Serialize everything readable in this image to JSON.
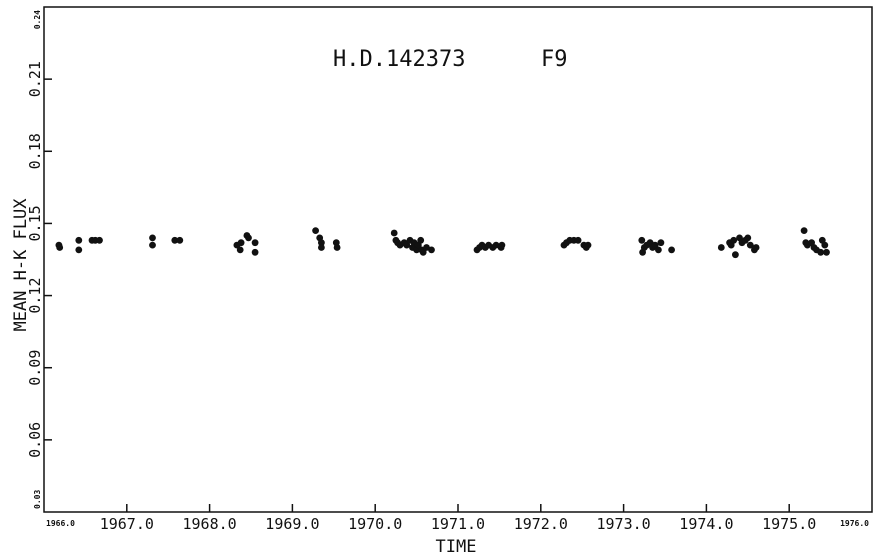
{
  "chart_data": {
    "type": "scatter",
    "title": "H.D.142373",
    "title_suffix": "F9",
    "xlabel": "TIME",
    "ylabel": "MEAN H-K FLUX",
    "xlim": [
      1966.0,
      1976.0
    ],
    "ylim": [
      0.03,
      0.24
    ],
    "x_ticks": [
      1966.0,
      1967.0,
      1968.0,
      1969.0,
      1970.0,
      1971.0,
      1972.0,
      1973.0,
      1974.0,
      1975.0,
      1976.0
    ],
    "x_tick_labels": [
      "1966.0",
      "1967.0",
      "1968.0",
      "1969.0",
      "1970.0",
      "1971.0",
      "1972.0",
      "1973.0",
      "1974.0",
      "1975.0",
      "1976.0"
    ],
    "y_ticks": [
      0.03,
      0.06,
      0.09,
      0.12,
      0.15,
      0.18,
      0.21,
      0.24
    ],
    "y_tick_labels": [
      "0.03",
      "0.06",
      "0.09",
      "0.12",
      "0.15",
      "0.18",
      "0.21",
      "0.24"
    ],
    "grid": false,
    "points": [
      {
        "x": 1966.18,
        "y": 0.141
      },
      {
        "x": 1966.19,
        "y": 0.14
      },
      {
        "x": 1966.42,
        "y": 0.143
      },
      {
        "x": 1966.42,
        "y": 0.139
      },
      {
        "x": 1966.58,
        "y": 0.143
      },
      {
        "x": 1966.62,
        "y": 0.143
      },
      {
        "x": 1966.67,
        "y": 0.143
      },
      {
        "x": 1967.31,
        "y": 0.144
      },
      {
        "x": 1967.31,
        "y": 0.141
      },
      {
        "x": 1967.58,
        "y": 0.143
      },
      {
        "x": 1967.64,
        "y": 0.143
      },
      {
        "x": 1968.33,
        "y": 0.141
      },
      {
        "x": 1968.37,
        "y": 0.139
      },
      {
        "x": 1968.38,
        "y": 0.142
      },
      {
        "x": 1968.45,
        "y": 0.145
      },
      {
        "x": 1968.47,
        "y": 0.144
      },
      {
        "x": 1968.55,
        "y": 0.142
      },
      {
        "x": 1968.55,
        "y": 0.138
      },
      {
        "x": 1969.28,
        "y": 0.147
      },
      {
        "x": 1969.33,
        "y": 0.144
      },
      {
        "x": 1969.35,
        "y": 0.142
      },
      {
        "x": 1969.35,
        "y": 0.14
      },
      {
        "x": 1969.53,
        "y": 0.142
      },
      {
        "x": 1969.54,
        "y": 0.14
      },
      {
        "x": 1970.23,
        "y": 0.146
      },
      {
        "x": 1970.25,
        "y": 0.143
      },
      {
        "x": 1970.27,
        "y": 0.142
      },
      {
        "x": 1970.3,
        "y": 0.141
      },
      {
        "x": 1970.35,
        "y": 0.142
      },
      {
        "x": 1970.38,
        "y": 0.141
      },
      {
        "x": 1970.42,
        "y": 0.143
      },
      {
        "x": 1970.45,
        "y": 0.14
      },
      {
        "x": 1970.47,
        "y": 0.142
      },
      {
        "x": 1970.5,
        "y": 0.139
      },
      {
        "x": 1970.52,
        "y": 0.141
      },
      {
        "x": 1970.55,
        "y": 0.143
      },
      {
        "x": 1970.56,
        "y": 0.139
      },
      {
        "x": 1970.58,
        "y": 0.138
      },
      {
        "x": 1970.62,
        "y": 0.14
      },
      {
        "x": 1970.68,
        "y": 0.139
      },
      {
        "x": 1971.23,
        "y": 0.139
      },
      {
        "x": 1971.26,
        "y": 0.14
      },
      {
        "x": 1971.29,
        "y": 0.141
      },
      {
        "x": 1971.33,
        "y": 0.14
      },
      {
        "x": 1971.37,
        "y": 0.141
      },
      {
        "x": 1971.42,
        "y": 0.14
      },
      {
        "x": 1971.46,
        "y": 0.141
      },
      {
        "x": 1971.52,
        "y": 0.14
      },
      {
        "x": 1971.53,
        "y": 0.141
      },
      {
        "x": 1972.28,
        "y": 0.141
      },
      {
        "x": 1972.31,
        "y": 0.142
      },
      {
        "x": 1972.35,
        "y": 0.143
      },
      {
        "x": 1972.4,
        "y": 0.143
      },
      {
        "x": 1972.45,
        "y": 0.143
      },
      {
        "x": 1972.52,
        "y": 0.141
      },
      {
        "x": 1972.55,
        "y": 0.14
      },
      {
        "x": 1972.57,
        "y": 0.141
      },
      {
        "x": 1973.22,
        "y": 0.143
      },
      {
        "x": 1973.23,
        "y": 0.138
      },
      {
        "x": 1973.25,
        "y": 0.14
      },
      {
        "x": 1973.28,
        "y": 0.141
      },
      {
        "x": 1973.32,
        "y": 0.142
      },
      {
        "x": 1973.35,
        "y": 0.14
      },
      {
        "x": 1973.38,
        "y": 0.141
      },
      {
        "x": 1973.42,
        "y": 0.139
      },
      {
        "x": 1973.45,
        "y": 0.142
      },
      {
        "x": 1973.58,
        "y": 0.139
      },
      {
        "x": 1974.18,
        "y": 0.14
      },
      {
        "x": 1974.28,
        "y": 0.142
      },
      {
        "x": 1974.3,
        "y": 0.141
      },
      {
        "x": 1974.33,
        "y": 0.143
      },
      {
        "x": 1974.35,
        "y": 0.137
      },
      {
        "x": 1974.4,
        "y": 0.144
      },
      {
        "x": 1974.43,
        "y": 0.142
      },
      {
        "x": 1974.47,
        "y": 0.143
      },
      {
        "x": 1974.5,
        "y": 0.144
      },
      {
        "x": 1974.53,
        "y": 0.141
      },
      {
        "x": 1974.58,
        "y": 0.139
      },
      {
        "x": 1974.6,
        "y": 0.14
      },
      {
        "x": 1975.18,
        "y": 0.147
      },
      {
        "x": 1975.2,
        "y": 0.142
      },
      {
        "x": 1975.22,
        "y": 0.141
      },
      {
        "x": 1975.27,
        "y": 0.142
      },
      {
        "x": 1975.3,
        "y": 0.14
      },
      {
        "x": 1975.33,
        "y": 0.139
      },
      {
        "x": 1975.38,
        "y": 0.138
      },
      {
        "x": 1975.4,
        "y": 0.143
      },
      {
        "x": 1975.43,
        "y": 0.141
      },
      {
        "x": 1975.45,
        "y": 0.138
      }
    ]
  }
}
